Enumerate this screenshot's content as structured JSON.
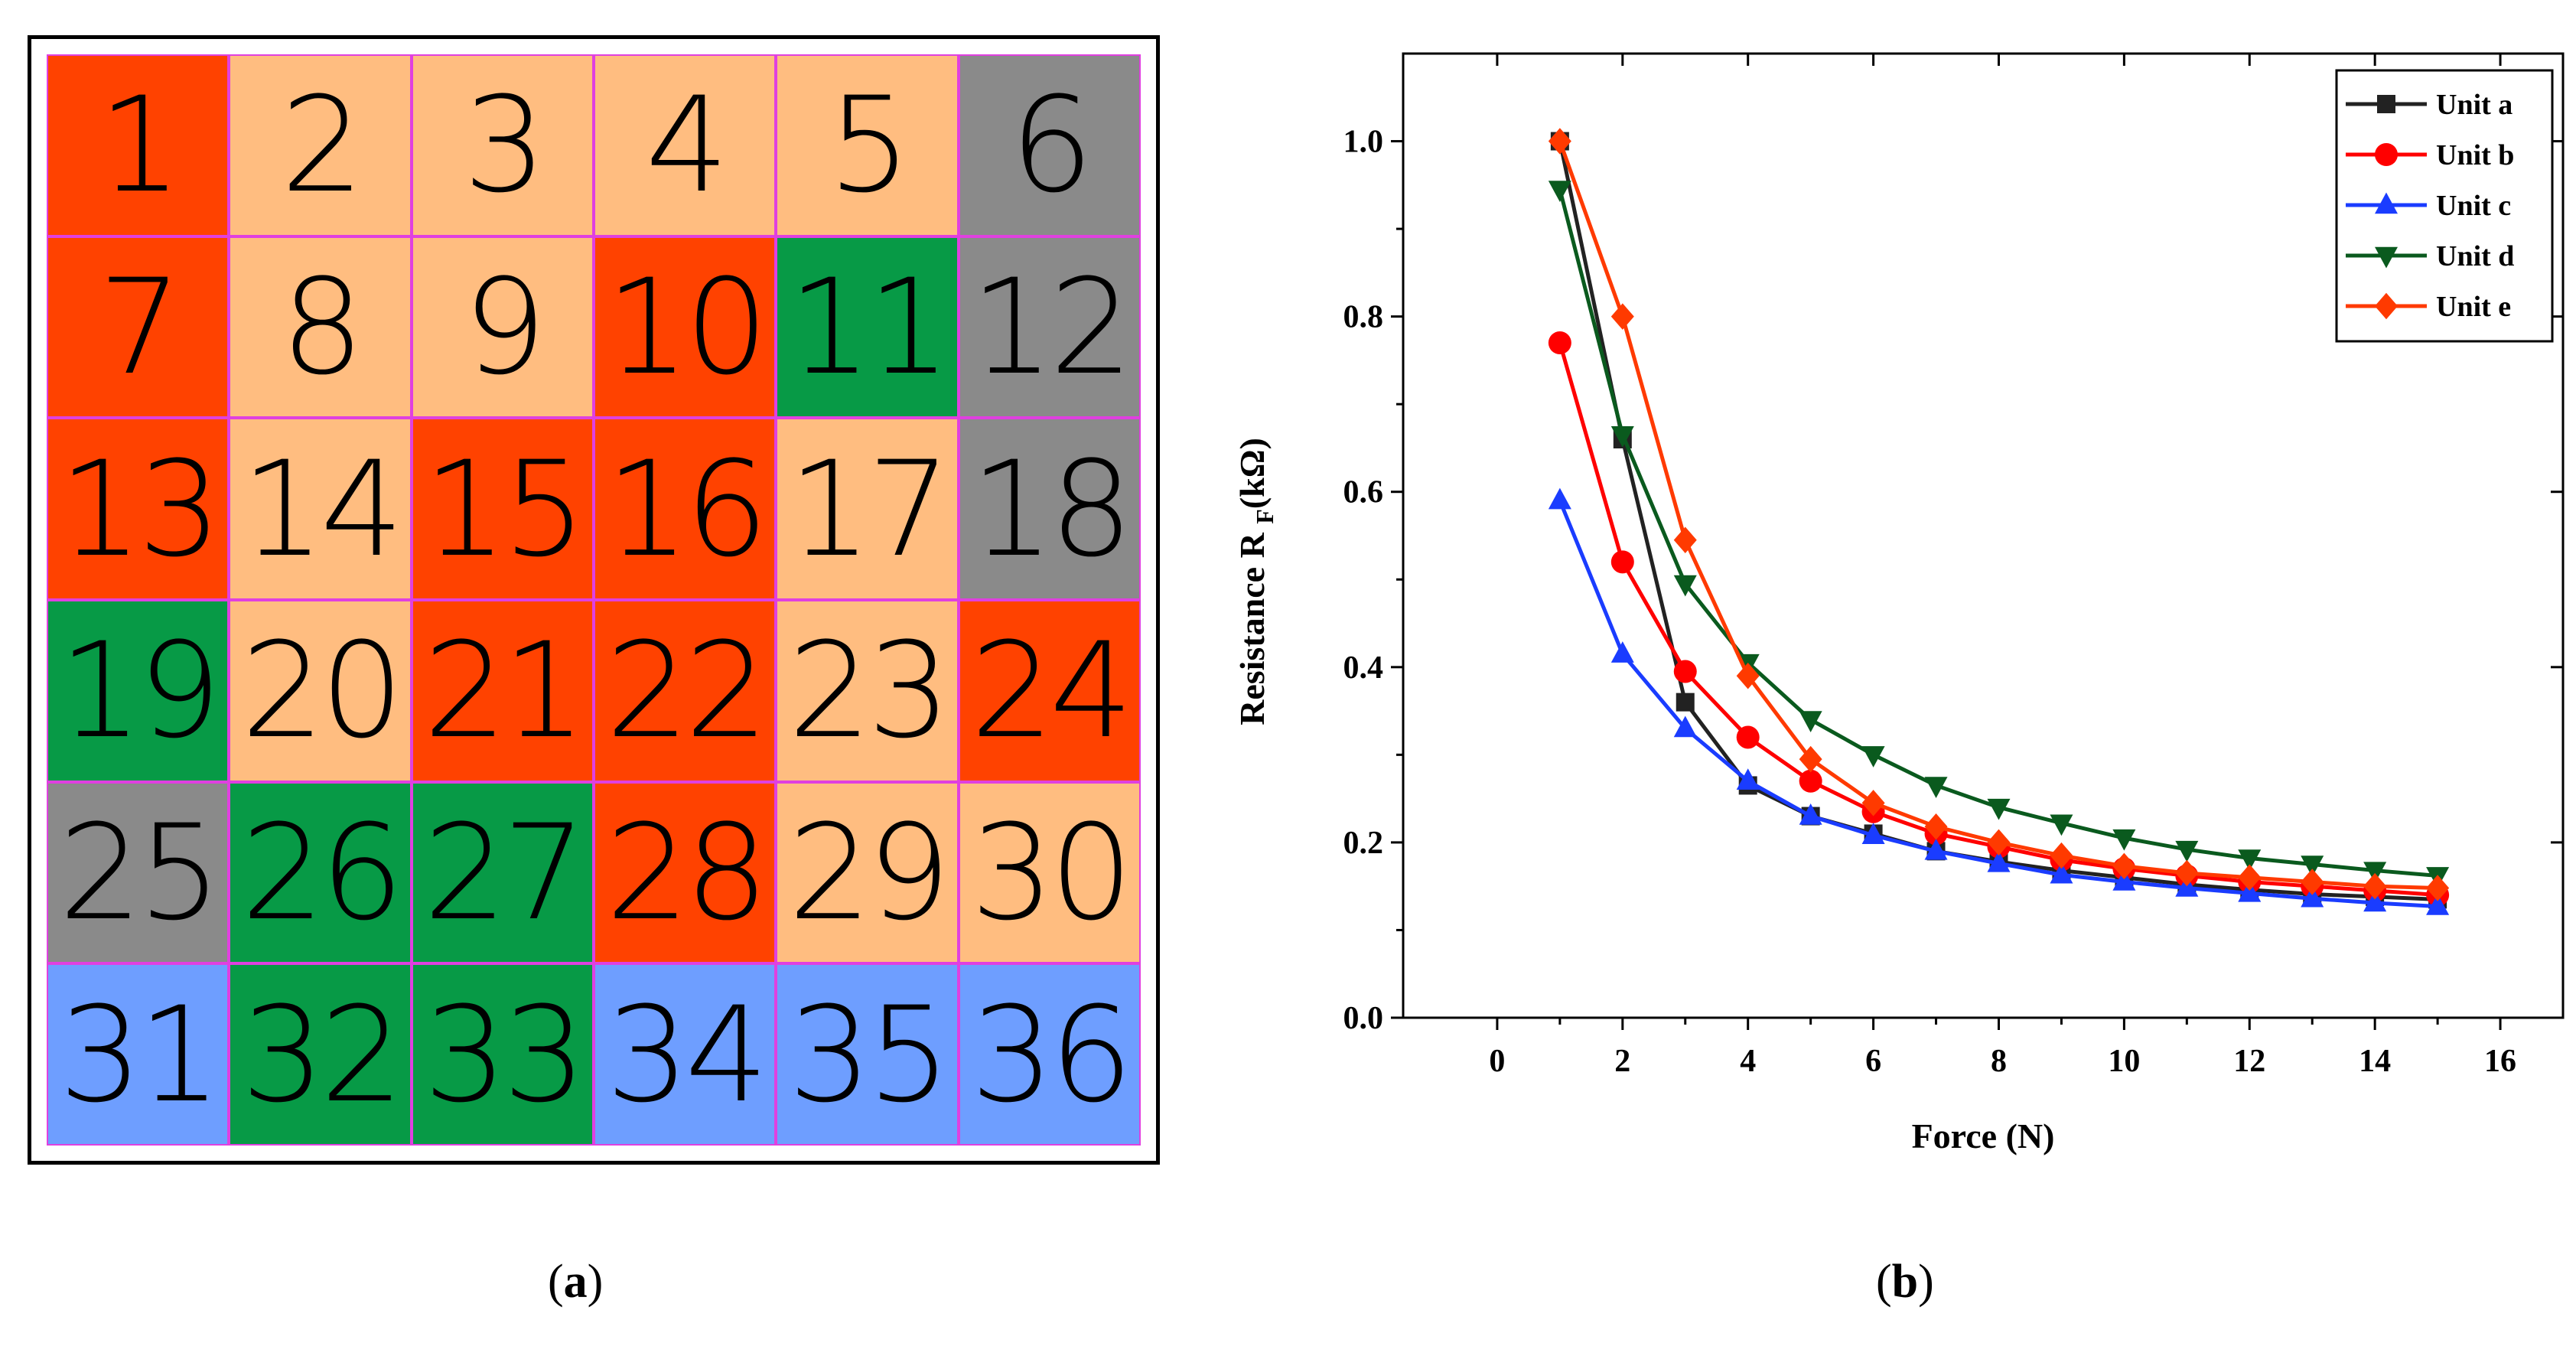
{
  "panel_a": {
    "caption_open": "(",
    "caption_letter": "a",
    "caption_close": ")",
    "palette": {
      "R": "#ff4200",
      "P": "#ffbd80",
      "G": "#8a8a8a",
      "N": "#079a46",
      "B": "#6e9eff"
    },
    "cells": [
      {
        "label": "1",
        "c": "R"
      },
      {
        "label": "2",
        "c": "P"
      },
      {
        "label": "3",
        "c": "P"
      },
      {
        "label": "4",
        "c": "P"
      },
      {
        "label": "5",
        "c": "P"
      },
      {
        "label": "6",
        "c": "G"
      },
      {
        "label": "7",
        "c": "R"
      },
      {
        "label": "8",
        "c": "P"
      },
      {
        "label": "9",
        "c": "P"
      },
      {
        "label": "10",
        "c": "R"
      },
      {
        "label": "11",
        "c": "N"
      },
      {
        "label": "12",
        "c": "G"
      },
      {
        "label": "13",
        "c": "R"
      },
      {
        "label": "14",
        "c": "P"
      },
      {
        "label": "15",
        "c": "R"
      },
      {
        "label": "16",
        "c": "R"
      },
      {
        "label": "17",
        "c": "P"
      },
      {
        "label": "18",
        "c": "G"
      },
      {
        "label": "19",
        "c": "N"
      },
      {
        "label": "20",
        "c": "P"
      },
      {
        "label": "21",
        "c": "R"
      },
      {
        "label": "22",
        "c": "R"
      },
      {
        "label": "23",
        "c": "P"
      },
      {
        "label": "24",
        "c": "R"
      },
      {
        "label": "25",
        "c": "G"
      },
      {
        "label": "26",
        "c": "N"
      },
      {
        "label": "27",
        "c": "N"
      },
      {
        "label": "28",
        "c": "R"
      },
      {
        "label": "29",
        "c": "P"
      },
      {
        "label": "30",
        "c": "P"
      },
      {
        "label": "31",
        "c": "B"
      },
      {
        "label": "32",
        "c": "N"
      },
      {
        "label": "33",
        "c": "N"
      },
      {
        "label": "34",
        "c": "B"
      },
      {
        "label": "35",
        "c": "B"
      },
      {
        "label": "36",
        "c": "B"
      }
    ]
  },
  "panel_b": {
    "caption_open": "(",
    "caption_letter": "b",
    "caption_close": ")"
  },
  "chart_data": {
    "type": "line",
    "title": "",
    "xlabel": "Force (N)",
    "ylabel": "Resistance R",
    "ylabel_sub": "F",
    "ylabel_unit": "(kΩ)",
    "xlim": [
      -1.5,
      17
    ],
    "ylim": [
      0,
      1.1
    ],
    "xticks": [
      0,
      2,
      4,
      6,
      8,
      10,
      12,
      14,
      16
    ],
    "yticks": [
      0.0,
      0.2,
      0.4,
      0.6,
      0.8,
      1.0
    ],
    "ytick_labels": [
      "0.0",
      "0.2",
      "0.4",
      "0.6",
      "0.8",
      "1.0"
    ],
    "legend_position": "top-right",
    "x": [
      1,
      2,
      3,
      4,
      5,
      6,
      7,
      8,
      9,
      10,
      11,
      12,
      13,
      14,
      15
    ],
    "series": [
      {
        "name": "Unit a",
        "color": "#222222",
        "marker": "square",
        "values": [
          1.0,
          0.66,
          0.36,
          0.265,
          0.23,
          0.21,
          0.19,
          0.178,
          0.168,
          0.16,
          0.152,
          0.146,
          0.141,
          0.138,
          0.135
        ]
      },
      {
        "name": "Unit b",
        "color": "#ff0000",
        "marker": "circle",
        "values": [
          0.77,
          0.52,
          0.395,
          0.32,
          0.27,
          0.235,
          0.21,
          0.195,
          0.18,
          0.17,
          0.162,
          0.155,
          0.15,
          0.145,
          0.14
        ]
      },
      {
        "name": "Unit c",
        "color": "#1a3cff",
        "marker": "triangle-up",
        "values": [
          0.59,
          0.415,
          0.33,
          0.27,
          0.23,
          0.208,
          0.19,
          0.176,
          0.163,
          0.155,
          0.148,
          0.142,
          0.136,
          0.131,
          0.127
        ]
      },
      {
        "name": "Unit d",
        "color": "#0a5a1e",
        "marker": "triangle-down",
        "values": [
          0.945,
          0.665,
          0.495,
          0.405,
          0.34,
          0.3,
          0.265,
          0.24,
          0.222,
          0.205,
          0.192,
          0.182,
          0.175,
          0.168,
          0.162
        ]
      },
      {
        "name": "Unit e",
        "color": "#ff3a00",
        "marker": "diamond",
        "values": [
          1.0,
          0.8,
          0.545,
          0.39,
          0.295,
          0.245,
          0.218,
          0.2,
          0.185,
          0.173,
          0.165,
          0.16,
          0.155,
          0.15,
          0.148
        ]
      }
    ]
  }
}
